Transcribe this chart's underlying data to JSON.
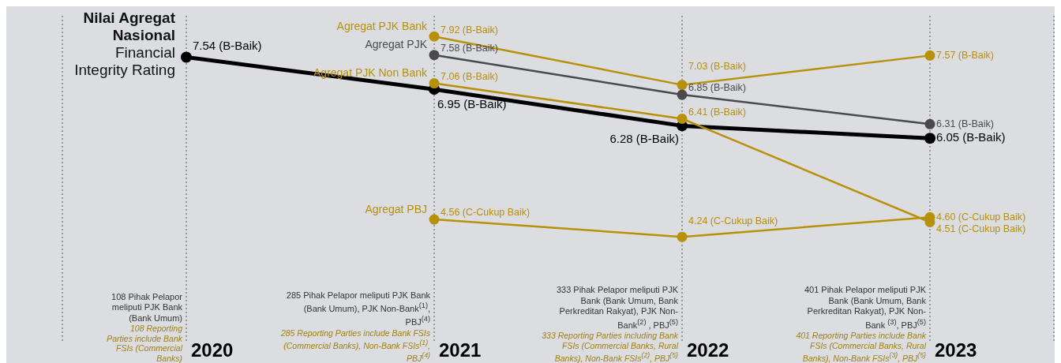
{
  "chart_data": {
    "type": "line",
    "title": "Nilai Agregat Nasional",
    "subtitle": "Financial Integrity Rating",
    "categories": [
      "2020",
      "2021",
      "2022",
      "2023"
    ],
    "series": [
      {
        "color": "#000000",
        "values": [
          7.54,
          6.95,
          6.28,
          6.05
        ],
        "value_labels": [
          "7.54 (B-Baik)",
          "6.95 (B-Baik)",
          "6.28 (B-Baik)",
          "6.05 (B-Baik)"
        ]
      },
      {
        "name": "Agregat PJK Bank",
        "color": "#b8900a",
        "values": [
          null,
          7.92,
          7.03,
          7.57
        ],
        "value_labels": [
          null,
          "7.92 (B-Baik)",
          "7.03 (B-Baik)",
          "7.57 (B-Baik)"
        ]
      },
      {
        "name": "Agregat PJK",
        "color": "#4a4a4d",
        "values": [
          null,
          7.58,
          6.85,
          6.31
        ],
        "value_labels": [
          null,
          "7.58 (B-Baik)",
          "6.85 (B-Baik)",
          "6.31 (B-Baik)"
        ]
      },
      {
        "name": "Agregat PJK Non Bank",
        "color": "#b8900a",
        "values": [
          null,
          7.06,
          6.41,
          4.51
        ],
        "value_labels": [
          null,
          "7.06 (B-Baik)",
          "6.41 (B-Baik)",
          "4.51 (C-Cukup Baik)"
        ]
      },
      {
        "name": "Agregat PBJ",
        "color": "#b8900a",
        "values": [
          null,
          4.56,
          4.24,
          4.6
        ],
        "value_labels": [
          null,
          "4.56 (C-Cukup Baik)",
          "4.24 (C-Cukup Baik)",
          "4.60 (C-Cukup Baik)"
        ]
      }
    ],
    "ylim": [
      2.3,
      8.3
    ],
    "grid": "x",
    "tick_labels": "x",
    "marker": "circle",
    "line_style": "solid",
    "annotations": [
      "108 Pihak Pelapor meliputi PJK Bank (Bank Umum)",
      "108 Reporting Parties include Bank FSIs (Commercial Banks)",
      "285 Pihak Pelapor meliputi PJK Bank (Bank Umum), PJK Non-Bank$^{(1)}$,  PBJ$^{(4)}$",
      "285 Reporting Parties include Bank FSIs (Commercial Banks), Non-Bank FSIs$^{(1)}$, PBJ$^{(4)}$",
      "333 Pihak Pelapor meliputi PJK Bank (Bank Umum, Bank Perkreditan Rakyat), PJK Non-Bank$^{(2)}$ , PBJ$^{(5)}$",
      "333 Reporting Parties including Bank FSIs (Commercial Banks, Rural Banks), Non-Bank FSIs$^{(2)}$, PBJ$^{(5)}$",
      "401 Pihak Pelapor meliputi PJK Bank (Bank Umum, Bank Perkreditan Rakyat), PJK Non-Bank $^{(3)}$, PBJ$^{(5)}$",
      "401 Reporting Parties include Bank FSIs (Commercial Banks, Rural Banks), Non-Bank FSIs$^{(3)}$, PBJ$^{(5)}$"
    ]
  }
}
